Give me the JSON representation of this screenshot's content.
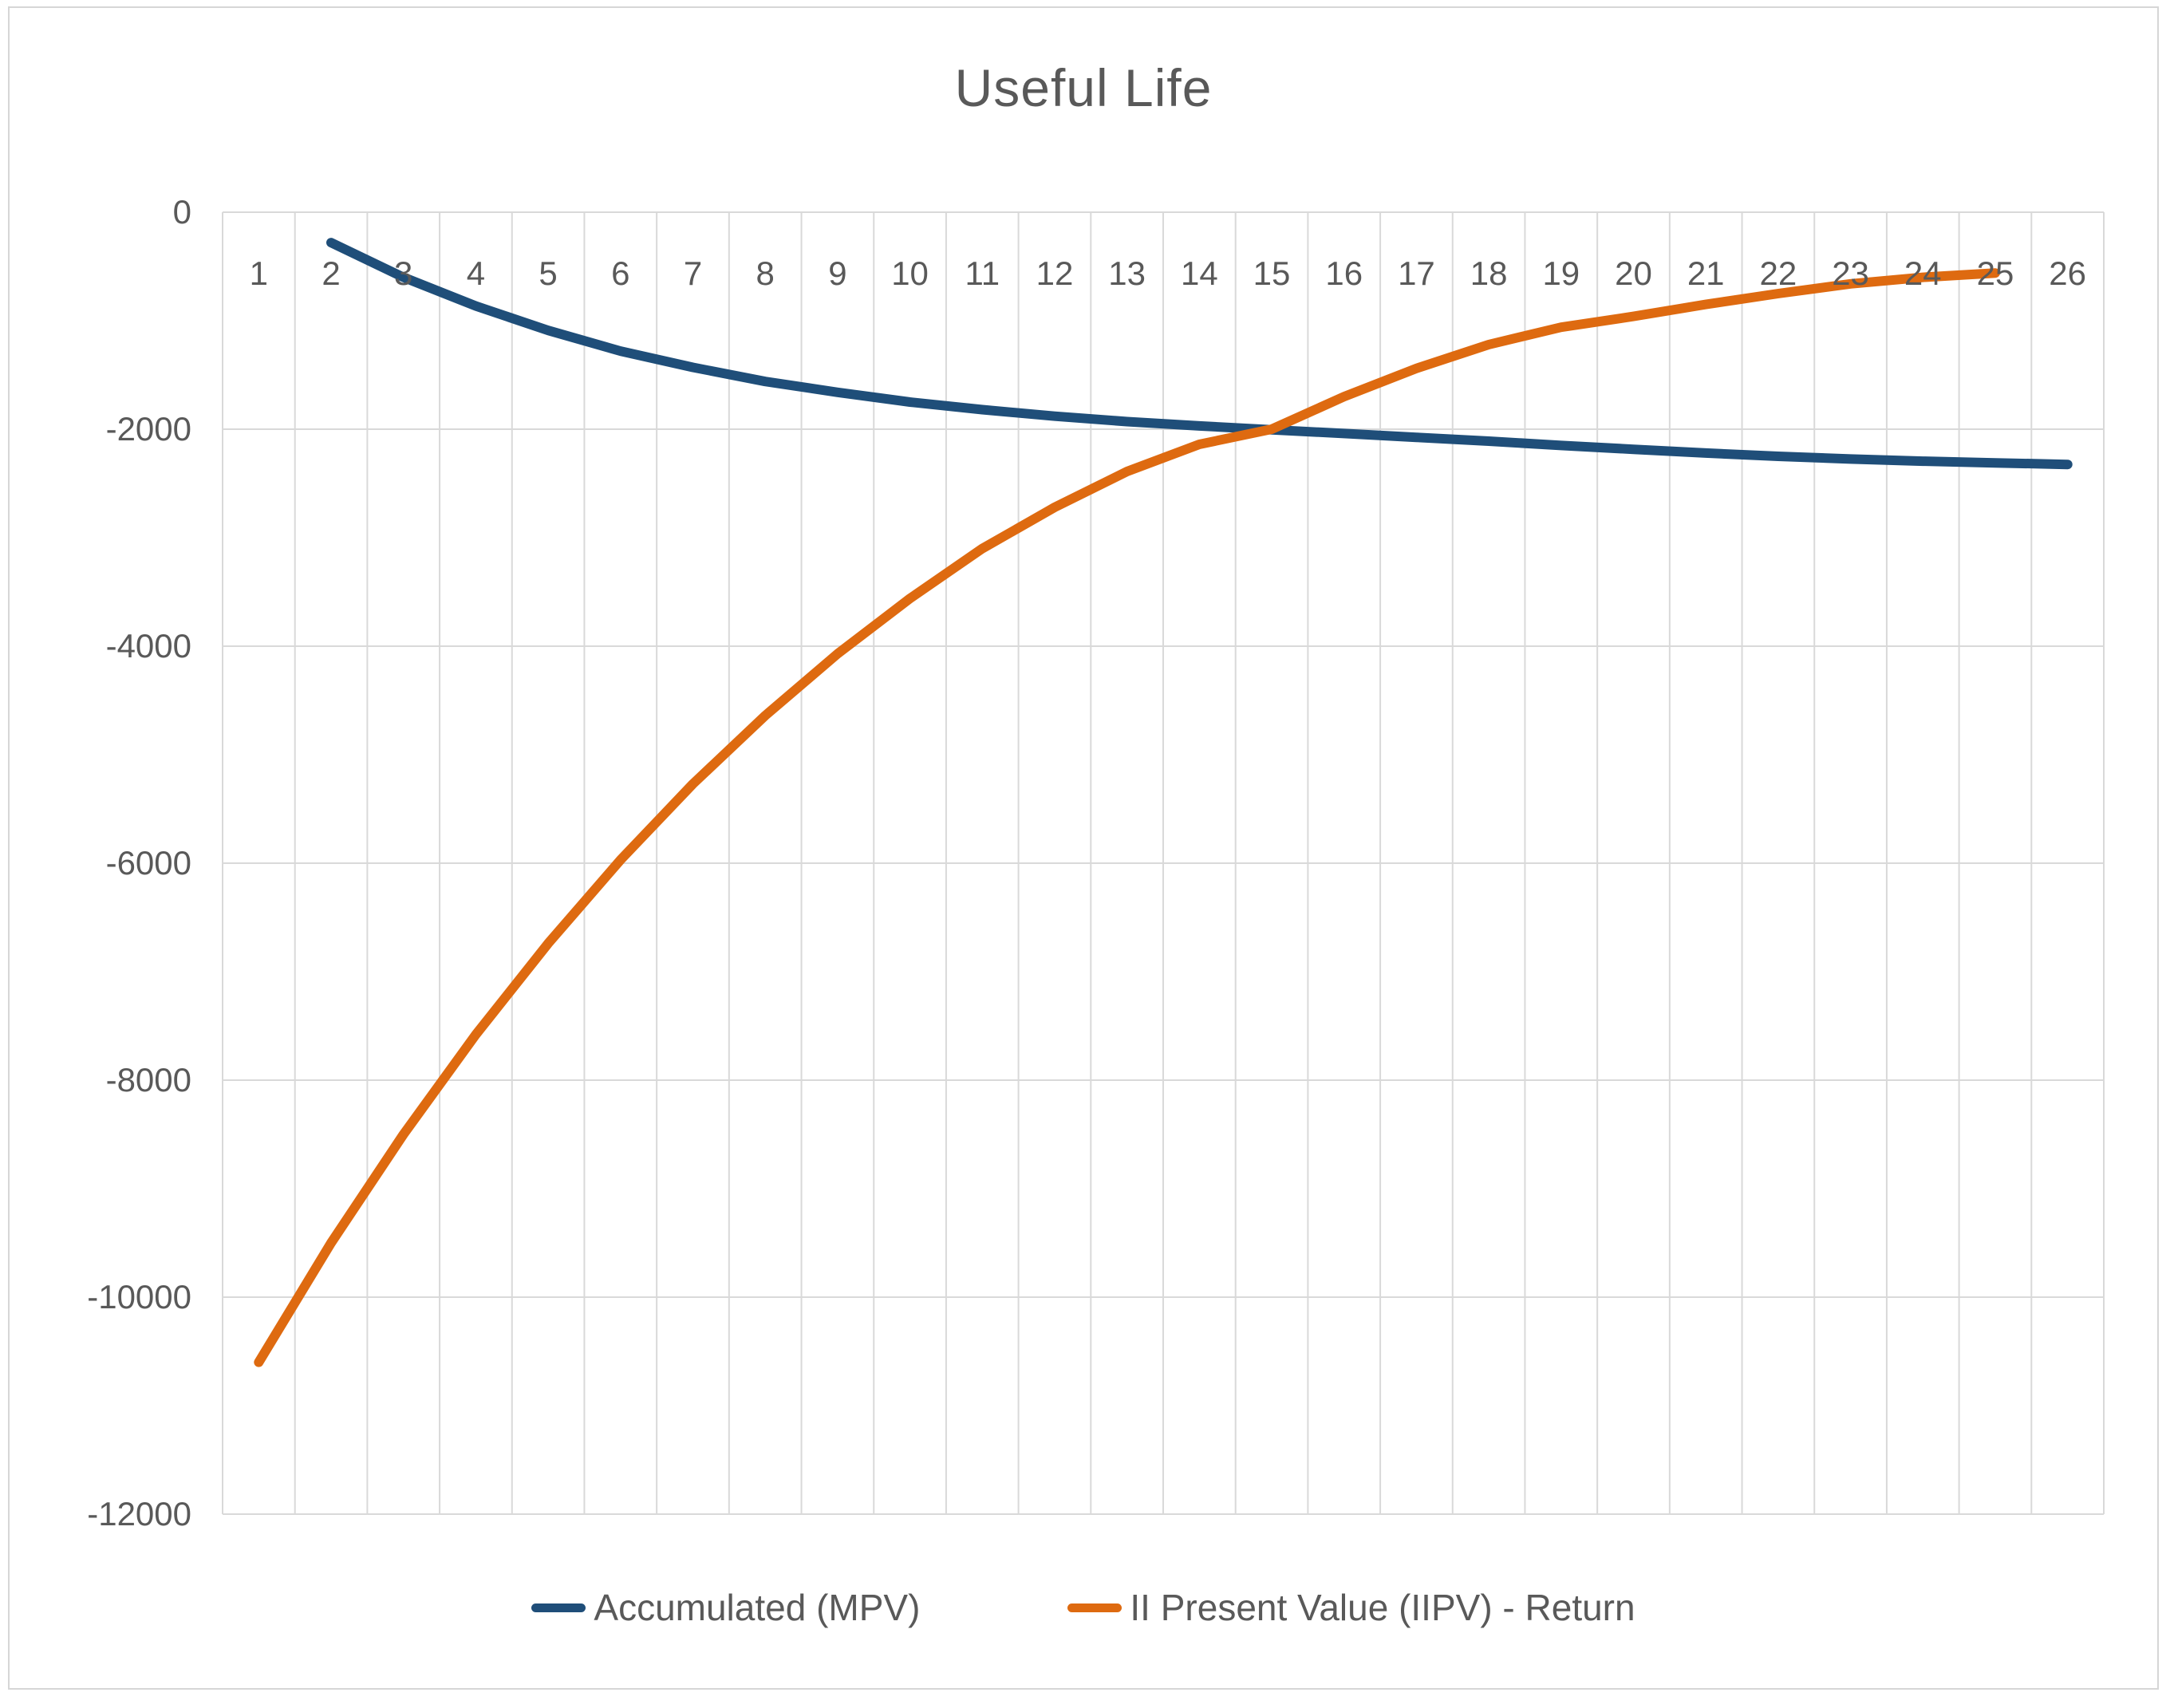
{
  "chart_data": {
    "type": "line",
    "title": "Useful Life",
    "xlabel": "",
    "ylabel": "",
    "grid": true,
    "legend_position": "bottom",
    "x_categories": [
      "1",
      "2",
      "3",
      "4",
      "5",
      "6",
      "7",
      "8",
      "9",
      "10",
      "11",
      "12",
      "13",
      "14",
      "15",
      "16",
      "17",
      "18",
      "19",
      "20",
      "21",
      "22",
      "23",
      "24",
      "25",
      "26"
    ],
    "y_axis": {
      "min": -12000,
      "max": 0,
      "tick_step": 2000,
      "tick_labels_top_to_bottom": [
        "0",
        "-2000",
        "-4000",
        "-6000",
        "-8000",
        "-10000",
        "-12000"
      ]
    },
    "series": [
      {
        "name": "Accumulated (MPV)",
        "color": "#1F4E79",
        "values": [
          null,
          -280,
          -600,
          -865,
          -1090,
          -1280,
          -1430,
          -1560,
          -1660,
          -1750,
          -1820,
          -1880,
          -1930,
          -1970,
          -2005,
          -2040,
          -2075,
          -2110,
          -2150,
          -2185,
          -2220,
          -2250,
          -2275,
          -2295,
          -2310,
          -2325
        ]
      },
      {
        "name": "II Present Value (IIPV) - Return",
        "color": "#DE6A10",
        "values": [
          -10600,
          -9500,
          -8500,
          -7580,
          -6740,
          -5970,
          -5270,
          -4640,
          -4070,
          -3560,
          -3100,
          -2720,
          -2390,
          -2140,
          -2000,
          -1700,
          -1440,
          -1220,
          -1060,
          -960,
          -850,
          -750,
          -660,
          -600,
          -560,
          null
        ]
      }
    ]
  },
  "colors": {
    "gridline": "#D9D9D9",
    "axis_text": "#595959",
    "title_text": "#595959",
    "chart_border": "#D6D6D6",
    "background": "#FFFFFF"
  }
}
